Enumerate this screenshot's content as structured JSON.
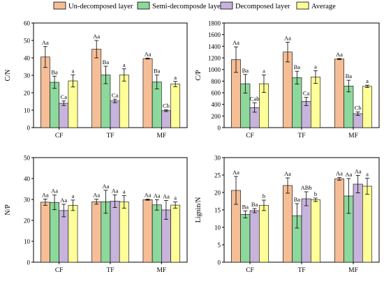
{
  "legend": {
    "items": [
      {
        "label": "Un-decomposed layer",
        "color": "#F5BE96"
      },
      {
        "label": "Semi-decomposde layer",
        "color": "#8DD89C"
      },
      {
        "label": "Decomposed layer",
        "color": "#C7B3DC"
      },
      {
        "label": "Average",
        "color": "#FFFF99"
      }
    ]
  },
  "chart_data": [
    {
      "type": "bar",
      "ylabel": "C/N",
      "ylim": [
        0,
        60
      ],
      "yticks": [
        0,
        10,
        20,
        30,
        40,
        50,
        60
      ],
      "categories": [
        "CF",
        "TF",
        "MF"
      ],
      "series": [
        {
          "name": "Un-decomposed layer",
          "values": [
            40.5,
            45,
            39.6
          ],
          "errors": [
            6,
            5,
            0.3
          ],
          "labels": [
            "Aa",
            "Aa",
            "Aa"
          ]
        },
        {
          "name": "Semi-decomposde layer",
          "values": [
            26,
            30.2,
            26.2
          ],
          "errors": [
            3.5,
            5,
            4
          ],
          "labels": [
            "Ba",
            "Ba",
            "Ba"
          ]
        },
        {
          "name": "Decomposed layer",
          "values": [
            14,
            15.3,
            9.7
          ],
          "errors": [
            1.3,
            1,
            0.5
          ],
          "labels": [
            "Ca",
            "Ca",
            "Cb"
          ]
        },
        {
          "name": "Average",
          "values": [
            26.8,
            30.2,
            25
          ],
          "errors": [
            3.5,
            3.5,
            1.5
          ],
          "labels": [
            "a",
            "a",
            "a"
          ]
        }
      ]
    },
    {
      "type": "bar",
      "ylabel": "C/P",
      "ylim": [
        0,
        1800
      ],
      "yticks": [
        0,
        200,
        400,
        600,
        800,
        1000,
        1200,
        1400,
        1600,
        1800
      ],
      "categories": [
        "CF",
        "TF",
        "MF"
      ],
      "series": [
        {
          "name": "Un-decomposed layer",
          "values": [
            1170,
            1300,
            1180
          ],
          "errors": [
            220,
            170,
            10
          ],
          "labels": [
            "Aa",
            "Aa",
            "Aa"
          ]
        },
        {
          "name": "Semi-decomposde layer",
          "values": [
            755,
            860,
            715
          ],
          "errors": [
            160,
            110,
            100
          ],
          "labels": [
            "Ba",
            "Ba",
            "Ba"
          ]
        },
        {
          "name": "Decomposed layer",
          "values": [
            345,
            450,
            240
          ],
          "errors": [
            80,
            70,
            30
          ],
          "labels": [
            "Cab",
            "Ca",
            "Cb"
          ]
        },
        {
          "name": "Average",
          "values": [
            755,
            870,
            710
          ],
          "errors": [
            150,
            110,
            20
          ],
          "labels": [
            "a",
            "a",
            "a"
          ]
        }
      ]
    },
    {
      "type": "bar",
      "ylabel": "N/P",
      "ylim": [
        0,
        50
      ],
      "yticks": [
        0,
        10,
        20,
        30,
        40,
        50
      ],
      "categories": [
        "CF",
        "TF",
        "MF"
      ],
      "series": [
        {
          "name": "Un-decomposed layer",
          "values": [
            28.7,
            28.9,
            29.9
          ],
          "errors": [
            1.5,
            1.2,
            0.3
          ],
          "labels": [
            "Aa",
            "Aa",
            "Aa"
          ]
        },
        {
          "name": "Semi-decomposde layer",
          "values": [
            28.6,
            28.9,
            27.4
          ],
          "errors": [
            3.5,
            5.5,
            2.5
          ],
          "labels": [
            "Aa",
            "Aa",
            "Aa"
          ]
        },
        {
          "name": "Decomposed layer",
          "values": [
            24.7,
            29.2,
            25
          ],
          "errors": [
            3,
            3,
            4.5
          ],
          "labels": [
            "Aa",
            "Aa",
            "Aa"
          ]
        },
        {
          "name": "Average",
          "values": [
            27.2,
            28.8,
            27.3
          ],
          "errors": [
            2.5,
            3,
            1.5
          ],
          "labels": [
            "a",
            "a",
            "a"
          ]
        }
      ]
    },
    {
      "type": "bar",
      "ylabel": "Lignin/N",
      "ylim": [
        0,
        30
      ],
      "yticks": [
        0,
        5,
        10,
        15,
        20,
        25,
        30
      ],
      "categories": [
        "CF",
        "TF",
        "MF"
      ],
      "series": [
        {
          "name": "Un-decomposed layer",
          "values": [
            20.6,
            22,
            23.9
          ],
          "errors": [
            4,
            2.2,
            0.4
          ],
          "labels": [
            "Aa",
            "Aa",
            "Aa"
          ]
        },
        {
          "name": "Semi-decomposde layer",
          "values": [
            13.7,
            13.3,
            19
          ],
          "errors": [
            1,
            3.5,
            5
          ],
          "labels": [
            "Ba",
            "Ba",
            "Aa"
          ]
        },
        {
          "name": "Decomposed layer",
          "values": [
            14.8,
            18.2,
            22.4
          ],
          "errors": [
            0.6,
            2,
            2.5
          ],
          "labels": [
            "Ba",
            "ABb",
            "Aa"
          ]
        },
        {
          "name": "Average",
          "values": [
            16.3,
            17.9,
            21.8
          ],
          "errors": [
            1.5,
            0.5,
            2.3
          ],
          "labels": [
            "b",
            "b",
            "a"
          ]
        }
      ]
    }
  ]
}
